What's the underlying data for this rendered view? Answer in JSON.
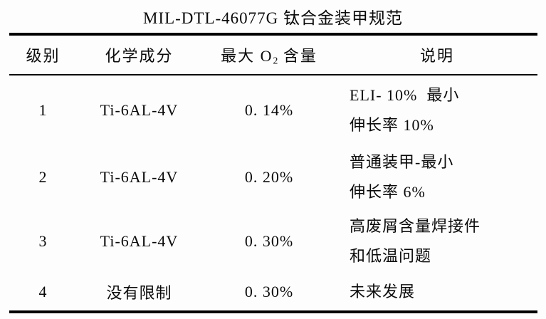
{
  "title": "MIL-DTL-46077G 钛合金装甲规范",
  "table": {
    "headers": {
      "grade": "级别",
      "composition": "化学成分",
      "max_o2_pre": "最大 O",
      "max_o2_sub": "2",
      "max_o2_post": " 含量",
      "description": "说明"
    },
    "rows": [
      {
        "grade": "1",
        "composition": "Ti-6AL-4V",
        "max_o2": "0. 14%",
        "description_line1": "ELI- 10%  最小",
        "description_line2": "伸长率 10%"
      },
      {
        "grade": "2",
        "composition": "Ti-6AL-4V",
        "max_o2": "0. 20%",
        "description_line1": "普通装甲-最小",
        "description_line2": "伸长率 6%"
      },
      {
        "grade": "3",
        "composition": "Ti-6AL-4V",
        "max_o2": "0. 30%",
        "description_line1": "高废屑含量焊接件",
        "description_line2": "和低温问题"
      },
      {
        "grade": "4",
        "composition": "没有限制",
        "max_o2": "0. 30%",
        "description_line1": "未来发展",
        "description_line2": ""
      }
    ]
  },
  "colors": {
    "text": "#0a0a0a",
    "background": "#fdfdfd",
    "rule": "#000000"
  }
}
